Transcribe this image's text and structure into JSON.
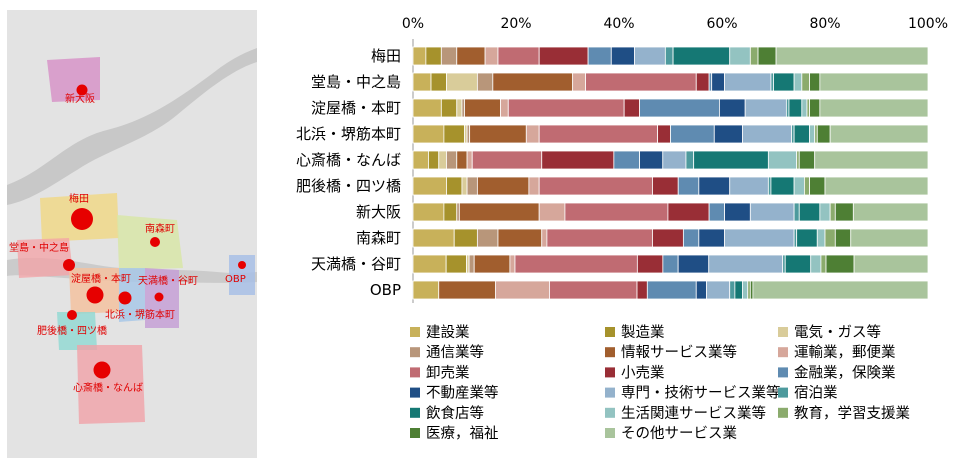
{
  "map": {
    "area_labels": [
      "新大阪",
      "梅田",
      "堂島・中之島",
      "南森町",
      "淀屋橋・本町",
      "天満橋・谷町",
      "北浜・堺筋本町",
      "OBP",
      "肥後橋・四ツ橋",
      "心斎橋・なんば"
    ]
  },
  "chart_data": {
    "type": "bar",
    "orientation": "horizontal",
    "stacked": true,
    "percent": true,
    "title": "",
    "xlabel": "",
    "ylabel": "",
    "xlim": [
      0,
      100
    ],
    "x_ticks": [
      "0%",
      "20%",
      "40%",
      "60%",
      "80%",
      "100%"
    ],
    "legend_position": "bottom",
    "categories": [
      "梅田",
      "堂島・中之島",
      "淀屋橋・本町",
      "北浜・堺筋本町",
      "心斎橋・なんば",
      "肥後橋・四ツ橋",
      "新大阪",
      "南森町",
      "天満橋・谷町",
      "OBP"
    ],
    "series": [
      {
        "name": "建設業",
        "color": "#c8b15a",
        "values": [
          2.5,
          3.5,
          5.5,
          6,
          3,
          6.5,
          6,
          8,
          6.5,
          5
        ]
      },
      {
        "name": "製造業",
        "color": "#a6922c",
        "values": [
          3,
          3,
          3,
          4,
          2,
          3,
          2.5,
          4.5,
          4,
          0
        ]
      },
      {
        "name": "電気・ガス等",
        "color": "#d9cc9a",
        "values": [
          0,
          6,
          1,
          0.5,
          1.5,
          1,
          0,
          0,
          0.5,
          0
        ]
      },
      {
        "name": "通信業等",
        "color": "#b8967a",
        "values": [
          3,
          3,
          0.5,
          0.5,
          2,
          2,
          0.5,
          4,
          1,
          0
        ]
      },
      {
        "name": "情報サービス業等",
        "color": "#a15e2e",
        "values": [
          5.5,
          15.5,
          7,
          11,
          2,
          10,
          15.5,
          8.5,
          7,
          11
        ]
      },
      {
        "name": "運輸業，郵便業",
        "color": "#d6a79b",
        "values": [
          2.5,
          2.5,
          1.5,
          2.5,
          1,
          2,
          5,
          1,
          1,
          10.5
        ]
      },
      {
        "name": "卸売業",
        "color": "#c06b72",
        "values": [
          8,
          21.5,
          22.5,
          23,
          13.5,
          22,
          20,
          20.5,
          24,
          17
        ]
      },
      {
        "name": "小売業",
        "color": "#992e36",
        "values": [
          9.5,
          2.5,
          3,
          2.5,
          14,
          5,
          8,
          6,
          5,
          2
        ]
      },
      {
        "name": "金融業，保険業",
        "color": "#5f8bb1",
        "values": [
          4.5,
          0.5,
          15.5,
          8.5,
          5,
          4,
          3,
          3,
          3,
          9.5
        ]
      },
      {
        "name": "不動産業等",
        "color": "#1f4e85",
        "values": [
          4.5,
          2.5,
          5,
          5.5,
          4.5,
          6,
          5,
          5,
          6,
          2
        ]
      },
      {
        "name": "専門・技術サービス業等",
        "color": "#94b2cc",
        "values": [
          6,
          9,
          8,
          9.5,
          4.5,
          7.5,
          8.5,
          13.5,
          14.5,
          4.5
        ]
      },
      {
        "name": "宿泊業",
        "color": "#4d9a9d",
        "values": [
          1.5,
          0.5,
          0.5,
          0.5,
          1.5,
          0.5,
          1,
          0.5,
          0.5,
          1
        ]
      },
      {
        "name": "飲食店等",
        "color": "#157874",
        "values": [
          11,
          4,
          2.5,
          3,
          14.5,
          4.5,
          4,
          4,
          5,
          1.5
        ]
      },
      {
        "name": "生活関連サービス業等",
        "color": "#93c3c1",
        "values": [
          4,
          1.5,
          1,
          1,
          5.5,
          2,
          2,
          1.5,
          2,
          1
        ]
      },
      {
        "name": "教育，学習支援業",
        "color": "#8bab6d",
        "values": [
          1.5,
          1.5,
          0.5,
          0.5,
          0.5,
          1,
          1,
          2,
          1,
          0.5
        ]
      },
      {
        "name": "医療，福祉",
        "color": "#4e7f34",
        "values": [
          3.5,
          2,
          2,
          2.5,
          3,
          3,
          3.5,
          3,
          5.5,
          0.5
        ]
      },
      {
        "name": "その他サービス業",
        "color": "#a9c49c",
        "values": [
          29.5,
          21,
          21,
          19,
          22,
          20,
          14.5,
          15,
          14.5,
          34
        ]
      }
    ]
  }
}
